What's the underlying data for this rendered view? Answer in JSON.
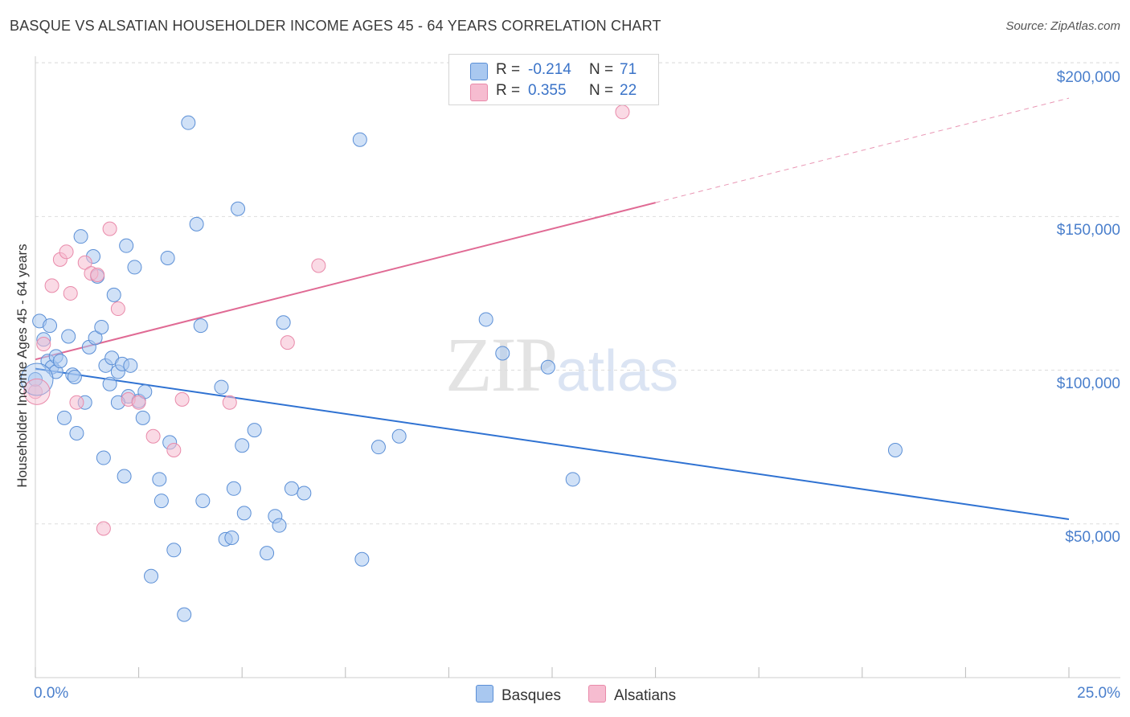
{
  "title": "BASQUE VS ALSATIAN HOUSEHOLDER INCOME AGES 45 - 64 YEARS CORRELATION CHART",
  "source": "Source: ZipAtlas.com",
  "watermark": {
    "zip": "ZIP",
    "atlas": "atlas"
  },
  "colors": {
    "blue_fill": "#a9c8f0",
    "blue_stroke": "#5b8fd6",
    "blue_line": "#2f72d2",
    "pink_fill": "#f6bcd0",
    "pink_stroke": "#e98aaa",
    "pink_line": "#e06a94",
    "grid": "#dddddd",
    "tick_text": "#4a7fcc"
  },
  "legend": {
    "rows": [
      {
        "series": "Basques",
        "r_label": "R =",
        "r_value": "-0.214",
        "n_label": "N =",
        "n_value": "71",
        "color": "#a9c8f0",
        "stroke": "#5b8fd6"
      },
      {
        "series": "Alsatians",
        "r_label": "R =",
        "r_value": "0.355",
        "n_label": "N =",
        "n_value": "22",
        "color": "#f6bcd0",
        "stroke": "#e98aaa"
      }
    ]
  },
  "chart_data": {
    "type": "scatter",
    "title": "BASQUE VS ALSATIAN HOUSEHOLDER INCOME AGES 45 - 64 YEARS CORRELATION CHART",
    "xlabel": "",
    "ylabel": "Householder Income Ages 45 - 64 years",
    "xlim": [
      0,
      25
    ],
    "ylim": [
      0,
      210000
    ],
    "x_tick_labels": [
      "0.0%",
      "25.0%"
    ],
    "y_ticks": [
      50000,
      100000,
      150000,
      200000
    ],
    "y_tick_labels": [
      "$50,000",
      "$100,000",
      "$150,000",
      "$200,000"
    ],
    "grid": "horizontal dashed",
    "legend_position": "top-center and bottom",
    "series": [
      {
        "name": "Basques",
        "trend": {
          "x": [
            0,
            25
          ],
          "y": [
            100500,
            51500
          ]
        },
        "points": [
          [
            0.0,
            97000
          ],
          [
            0.1,
            116000
          ],
          [
            0.2,
            110000
          ],
          [
            0.3,
            103000
          ],
          [
            0.35,
            114500
          ],
          [
            0.4,
            101000
          ],
          [
            0.5,
            104500
          ],
          [
            0.5,
            99500
          ],
          [
            0.6,
            103000
          ],
          [
            0.7,
            84500
          ],
          [
            0.8,
            111000
          ],
          [
            0.9,
            98500
          ],
          [
            0.95,
            97800
          ],
          [
            1.0,
            79500
          ],
          [
            1.1,
            143500
          ],
          [
            1.2,
            89500
          ],
          [
            1.3,
            107500
          ],
          [
            1.4,
            137000
          ],
          [
            1.45,
            110500
          ],
          [
            1.5,
            130500
          ],
          [
            1.6,
            114000
          ],
          [
            1.65,
            71500
          ],
          [
            1.7,
            101500
          ],
          [
            1.8,
            95500
          ],
          [
            1.85,
            104000
          ],
          [
            1.9,
            124500
          ],
          [
            2.0,
            99500
          ],
          [
            2.1,
            102000
          ],
          [
            2.15,
            65500
          ],
          [
            2.2,
            140500
          ],
          [
            2.25,
            91500
          ],
          [
            2.3,
            101500
          ],
          [
            2.4,
            133500
          ],
          [
            2.5,
            90000
          ],
          [
            2.6,
            84500
          ],
          [
            2.65,
            93000
          ],
          [
            2.8,
            33000
          ],
          [
            3.0,
            64500
          ],
          [
            3.05,
            57500
          ],
          [
            3.2,
            136500
          ],
          [
            3.25,
            76500
          ],
          [
            3.35,
            41500
          ],
          [
            3.6,
            20500
          ],
          [
            3.7,
            180500
          ],
          [
            3.9,
            147500
          ],
          [
            4.0,
            114500
          ],
          [
            4.05,
            57500
          ],
          [
            4.5,
            94500
          ],
          [
            4.6,
            45000
          ],
          [
            4.75,
            45500
          ],
          [
            4.8,
            61500
          ],
          [
            4.9,
            152500
          ],
          [
            5.0,
            75500
          ],
          [
            5.05,
            53500
          ],
          [
            5.3,
            80500
          ],
          [
            5.6,
            40500
          ],
          [
            5.8,
            52500
          ],
          [
            5.9,
            49500
          ],
          [
            6.0,
            115500
          ],
          [
            6.2,
            61500
          ],
          [
            6.5,
            60000
          ],
          [
            7.9,
            38500
          ],
          [
            7.85,
            175000
          ],
          [
            8.3,
            75000
          ],
          [
            8.8,
            78500
          ],
          [
            10.9,
            116500
          ],
          [
            11.3,
            105500
          ],
          [
            12.4,
            101000
          ],
          [
            13.0,
            64500
          ],
          [
            20.8,
            74000
          ],
          [
            2.0,
            89500
          ]
        ]
      },
      {
        "name": "Alsatians",
        "trend": {
          "x": [
            0,
            15
          ],
          "y": [
            103500,
            154500
          ],
          "dashed_extension": {
            "x": [
              15,
              25
            ],
            "y": [
              154500,
              188500
            ]
          }
        },
        "points": [
          [
            0.0,
            93000
          ],
          [
            0.2,
            108500
          ],
          [
            0.4,
            127500
          ],
          [
            0.6,
            136000
          ],
          [
            0.75,
            138500
          ],
          [
            0.85,
            125000
          ],
          [
            1.0,
            89500
          ],
          [
            1.2,
            135000
          ],
          [
            1.35,
            131500
          ],
          [
            1.5,
            131000
          ],
          [
            1.65,
            48500
          ],
          [
            1.8,
            146000
          ],
          [
            2.0,
            120000
          ],
          [
            2.25,
            90500
          ],
          [
            2.5,
            89500
          ],
          [
            2.85,
            78500
          ],
          [
            3.35,
            74000
          ],
          [
            3.55,
            90500
          ],
          [
            4.7,
            89500
          ],
          [
            6.1,
            109000
          ],
          [
            6.85,
            134000
          ],
          [
            14.2,
            184000
          ]
        ]
      }
    ]
  }
}
